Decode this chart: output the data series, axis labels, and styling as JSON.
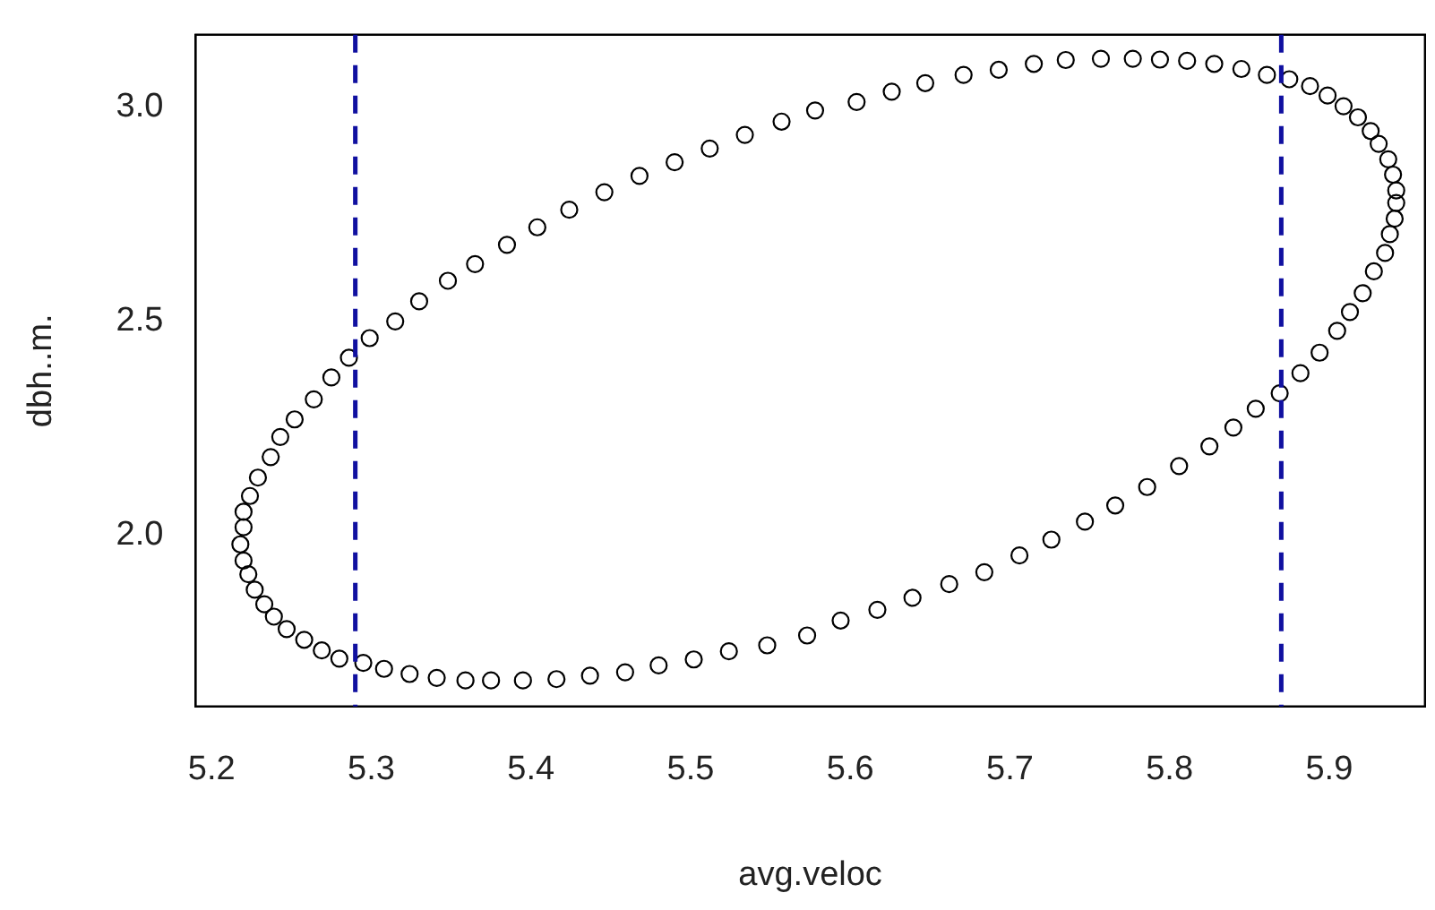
{
  "chart_data": {
    "type": "scatter",
    "xlabel": "avg.veloc",
    "ylabel": "dbh..m.",
    "xlim": [
      5.19,
      5.96
    ],
    "ylim": [
      1.6,
      3.17
    ],
    "xticks": [
      5.2,
      5.3,
      5.4,
      5.5,
      5.6,
      5.7,
      5.8,
      5.9
    ],
    "yticks": [
      {
        "value": 2,
        "label": "2.0"
      },
      {
        "value": 2.5,
        "label": "2.5"
      },
      {
        "value": 3,
        "label": "3.0"
      }
    ],
    "grid": false,
    "legend": false,
    "marker": "circle",
    "ref_lines": [
      {
        "axis": "x",
        "value": 5.29,
        "color": "#1010a0",
        "line_style": "dashed"
      },
      {
        "axis": "x",
        "value": 5.87,
        "color": "#1010a0",
        "line_style": "dashed"
      }
    ],
    "series": [
      {
        "color": "#000000",
        "x": [
          5.286,
          5.299,
          5.315,
          5.33,
          5.348,
          5.365,
          5.385,
          5.404,
          5.424,
          5.446,
          5.468,
          5.49,
          5.512,
          5.534,
          5.557,
          5.578,
          5.604,
          5.626,
          5.647,
          5.671,
          5.693,
          5.715,
          5.735,
          5.757,
          5.777,
          5.794,
          5.811,
          5.828,
          5.845,
          5.861,
          5.875,
          5.888,
          5.899,
          5.909,
          5.918,
          5.926,
          5.931,
          5.937,
          5.94,
          5.942,
          5.942,
          5.941,
          5.938,
          5.935,
          5.928,
          5.921,
          5.913,
          5.905,
          5.894,
          5.882,
          5.869,
          5.854,
          5.84,
          5.825,
          5.806,
          5.786,
          5.766,
          5.747,
          5.726,
          5.706,
          5.684,
          5.662,
          5.639,
          5.617,
          5.594,
          5.573,
          5.548,
          5.524,
          5.502,
          5.48,
          5.459,
          5.437,
          5.416,
          5.395,
          5.375,
          5.359,
          5.341,
          5.324,
          5.308,
          5.295,
          5.28,
          5.269,
          5.258,
          5.247,
          5.239,
          5.233,
          5.227,
          5.223,
          5.22,
          5.218,
          5.22,
          5.22,
          5.224,
          5.229,
          5.237,
          5.243,
          5.252,
          5.264,
          5.275
        ],
        "values": [
          2.415,
          2.461,
          2.5,
          2.547,
          2.595,
          2.634,
          2.679,
          2.72,
          2.761,
          2.802,
          2.84,
          2.872,
          2.904,
          2.936,
          2.967,
          2.993,
          3.013,
          3.037,
          3.057,
          3.076,
          3.088,
          3.102,
          3.111,
          3.114,
          3.114,
          3.112,
          3.109,
          3.102,
          3.09,
          3.076,
          3.066,
          3.05,
          3.028,
          3.003,
          2.977,
          2.945,
          2.915,
          2.879,
          2.843,
          2.806,
          2.777,
          2.74,
          2.704,
          2.66,
          2.617,
          2.566,
          2.522,
          2.478,
          2.427,
          2.379,
          2.332,
          2.296,
          2.252,
          2.208,
          2.162,
          2.113,
          2.07,
          2.032,
          1.99,
          1.953,
          1.914,
          1.886,
          1.854,
          1.826,
          1.801,
          1.766,
          1.743,
          1.729,
          1.71,
          1.696,
          1.68,
          1.672,
          1.664,
          1.661,
          1.661,
          1.661,
          1.667,
          1.676,
          1.688,
          1.702,
          1.712,
          1.731,
          1.756,
          1.781,
          1.81,
          1.839,
          1.873,
          1.909,
          1.941,
          1.979,
          2.019,
          2.055,
          2.092,
          2.135,
          2.183,
          2.23,
          2.271,
          2.318,
          2.369
        ]
      }
    ]
  }
}
